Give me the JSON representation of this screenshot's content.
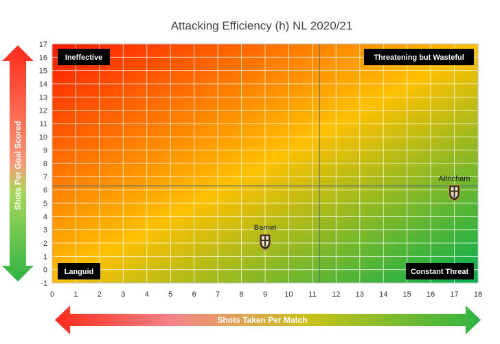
{
  "chart_data": {
    "type": "scatter",
    "title": "Attacking Efficiency (h) NL 2020/21",
    "xlabel": "Shots Taken Per Match",
    "ylabel": "Shots Per Goal Scored",
    "xlim": [
      0,
      18
    ],
    "ylim": [
      -1,
      17
    ],
    "x_ticks": [
      "0",
      "1",
      "2",
      "3",
      "4",
      "5",
      "6",
      "7",
      "8",
      "9",
      "10",
      "11",
      "12",
      "13",
      "14",
      "15",
      "16",
      "17",
      "18"
    ],
    "y_ticks": [
      "-1",
      "0",
      "1",
      "2",
      "3",
      "4",
      "5",
      "6",
      "7",
      "8",
      "9",
      "10",
      "11",
      "12",
      "13",
      "14",
      "15",
      "16",
      "17"
    ],
    "grid": true,
    "reference_lines": {
      "x": 11.3,
      "y": 6.3
    },
    "points": [
      {
        "label": "Barnet",
        "x": 9.0,
        "y": 2.1
      },
      {
        "label": "Altricham",
        "x": 17.0,
        "y": 5.8
      }
    ],
    "quadrants": {
      "top_left": "Ineffective",
      "top_right": "Threatening but Wasteful",
      "bottom_left": "Languid",
      "bottom_right": "Constant Threat"
    },
    "colors": {
      "bad": "#ff1a00",
      "mid": "#ffc000",
      "good": "#00b050"
    }
  }
}
